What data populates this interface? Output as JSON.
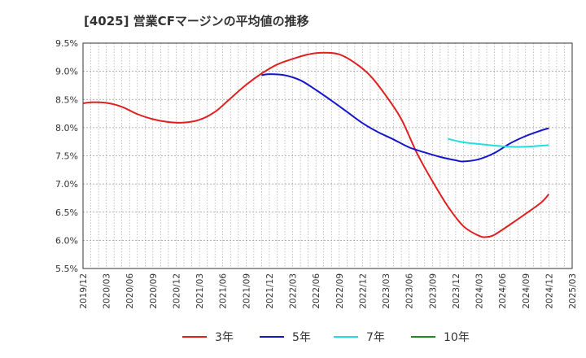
{
  "title": "[4025]  営業CFマージンの平均値の推移",
  "chart_data": {
    "type": "line",
    "title": "[4025]  営業CFマージンの平均値の推移",
    "ylim": [
      5.5,
      9.5
    ],
    "yticks": [
      5.5,
      6.0,
      6.5,
      7.0,
      7.5,
      8.0,
      8.5,
      9.0,
      9.5
    ],
    "ytick_labels": [
      "5.5%",
      "6.0%",
      "6.5%",
      "7.0%",
      "7.5%",
      "8.0%",
      "8.5%",
      "9.0%",
      "9.5%"
    ],
    "xticks": [
      "2019/12",
      "2020/03",
      "2020/06",
      "2020/09",
      "2020/12",
      "2021/03",
      "2021/06",
      "2021/09",
      "2021/12",
      "2022/03",
      "2022/06",
      "2022/09",
      "2022/12",
      "2023/03",
      "2023/06",
      "2023/09",
      "2023/12",
      "2024/03",
      "2024/06",
      "2024/09",
      "2024/12",
      "2025/03"
    ],
    "grid": true,
    "legend_position": "bottom",
    "series": [
      {
        "name": "3年",
        "color": "#e02020",
        "points": [
          [
            "2019/12",
            8.43
          ],
          [
            "2020/01",
            8.45
          ],
          [
            "2020/03",
            8.44
          ],
          [
            "2020/05",
            8.37
          ],
          [
            "2020/07",
            8.24
          ],
          [
            "2020/09",
            8.15
          ],
          [
            "2020/11",
            8.1
          ],
          [
            "2021/01",
            8.09
          ],
          [
            "2021/03",
            8.14
          ],
          [
            "2021/05",
            8.28
          ],
          [
            "2021/07",
            8.52
          ],
          [
            "2021/09",
            8.76
          ],
          [
            "2021/11",
            8.96
          ],
          [
            "2022/01",
            9.12
          ],
          [
            "2022/03",
            9.22
          ],
          [
            "2022/05",
            9.3
          ],
          [
            "2022/07",
            9.33
          ],
          [
            "2022/09",
            9.3
          ],
          [
            "2022/11",
            9.15
          ],
          [
            "2023/01",
            8.92
          ],
          [
            "2023/03",
            8.57
          ],
          [
            "2023/05",
            8.15
          ],
          [
            "2023/07",
            7.55
          ],
          [
            "2023/09",
            7.05
          ],
          [
            "2023/11",
            6.6
          ],
          [
            "2024/01",
            6.25
          ],
          [
            "2024/03",
            6.08
          ],
          [
            "2024/04",
            6.06
          ],
          [
            "2024/05",
            6.1
          ],
          [
            "2024/07",
            6.28
          ],
          [
            "2024/09",
            6.47
          ],
          [
            "2024/11",
            6.67
          ],
          [
            "2024/12",
            6.82
          ]
        ]
      },
      {
        "name": "5年",
        "color": "#1515cc",
        "points": [
          [
            "2021/11",
            8.93
          ],
          [
            "2021/12",
            8.95
          ],
          [
            "2022/02",
            8.93
          ],
          [
            "2022/04",
            8.84
          ],
          [
            "2022/06",
            8.67
          ],
          [
            "2022/08",
            8.48
          ],
          [
            "2022/10",
            8.28
          ],
          [
            "2022/12",
            8.08
          ],
          [
            "2023/02",
            7.92
          ],
          [
            "2023/04",
            7.79
          ],
          [
            "2023/06",
            7.65
          ],
          [
            "2023/08",
            7.56
          ],
          [
            "2023/10",
            7.48
          ],
          [
            "2023/12",
            7.42
          ],
          [
            "2024/01",
            7.4
          ],
          [
            "2024/03",
            7.44
          ],
          [
            "2024/05",
            7.55
          ],
          [
            "2024/07",
            7.72
          ],
          [
            "2024/09",
            7.85
          ],
          [
            "2024/11",
            7.95
          ],
          [
            "2024/12",
            7.99
          ]
        ]
      },
      {
        "name": "7年",
        "color": "#22dddd",
        "points": [
          [
            "2023/11",
            7.8
          ],
          [
            "2024/01",
            7.74
          ],
          [
            "2024/03",
            7.71
          ],
          [
            "2024/05",
            7.68
          ],
          [
            "2024/07",
            7.66
          ],
          [
            "2024/09",
            7.66
          ],
          [
            "2024/12",
            7.69
          ]
        ]
      },
      {
        "name": "10年",
        "color": "#228822",
        "points": []
      }
    ]
  }
}
